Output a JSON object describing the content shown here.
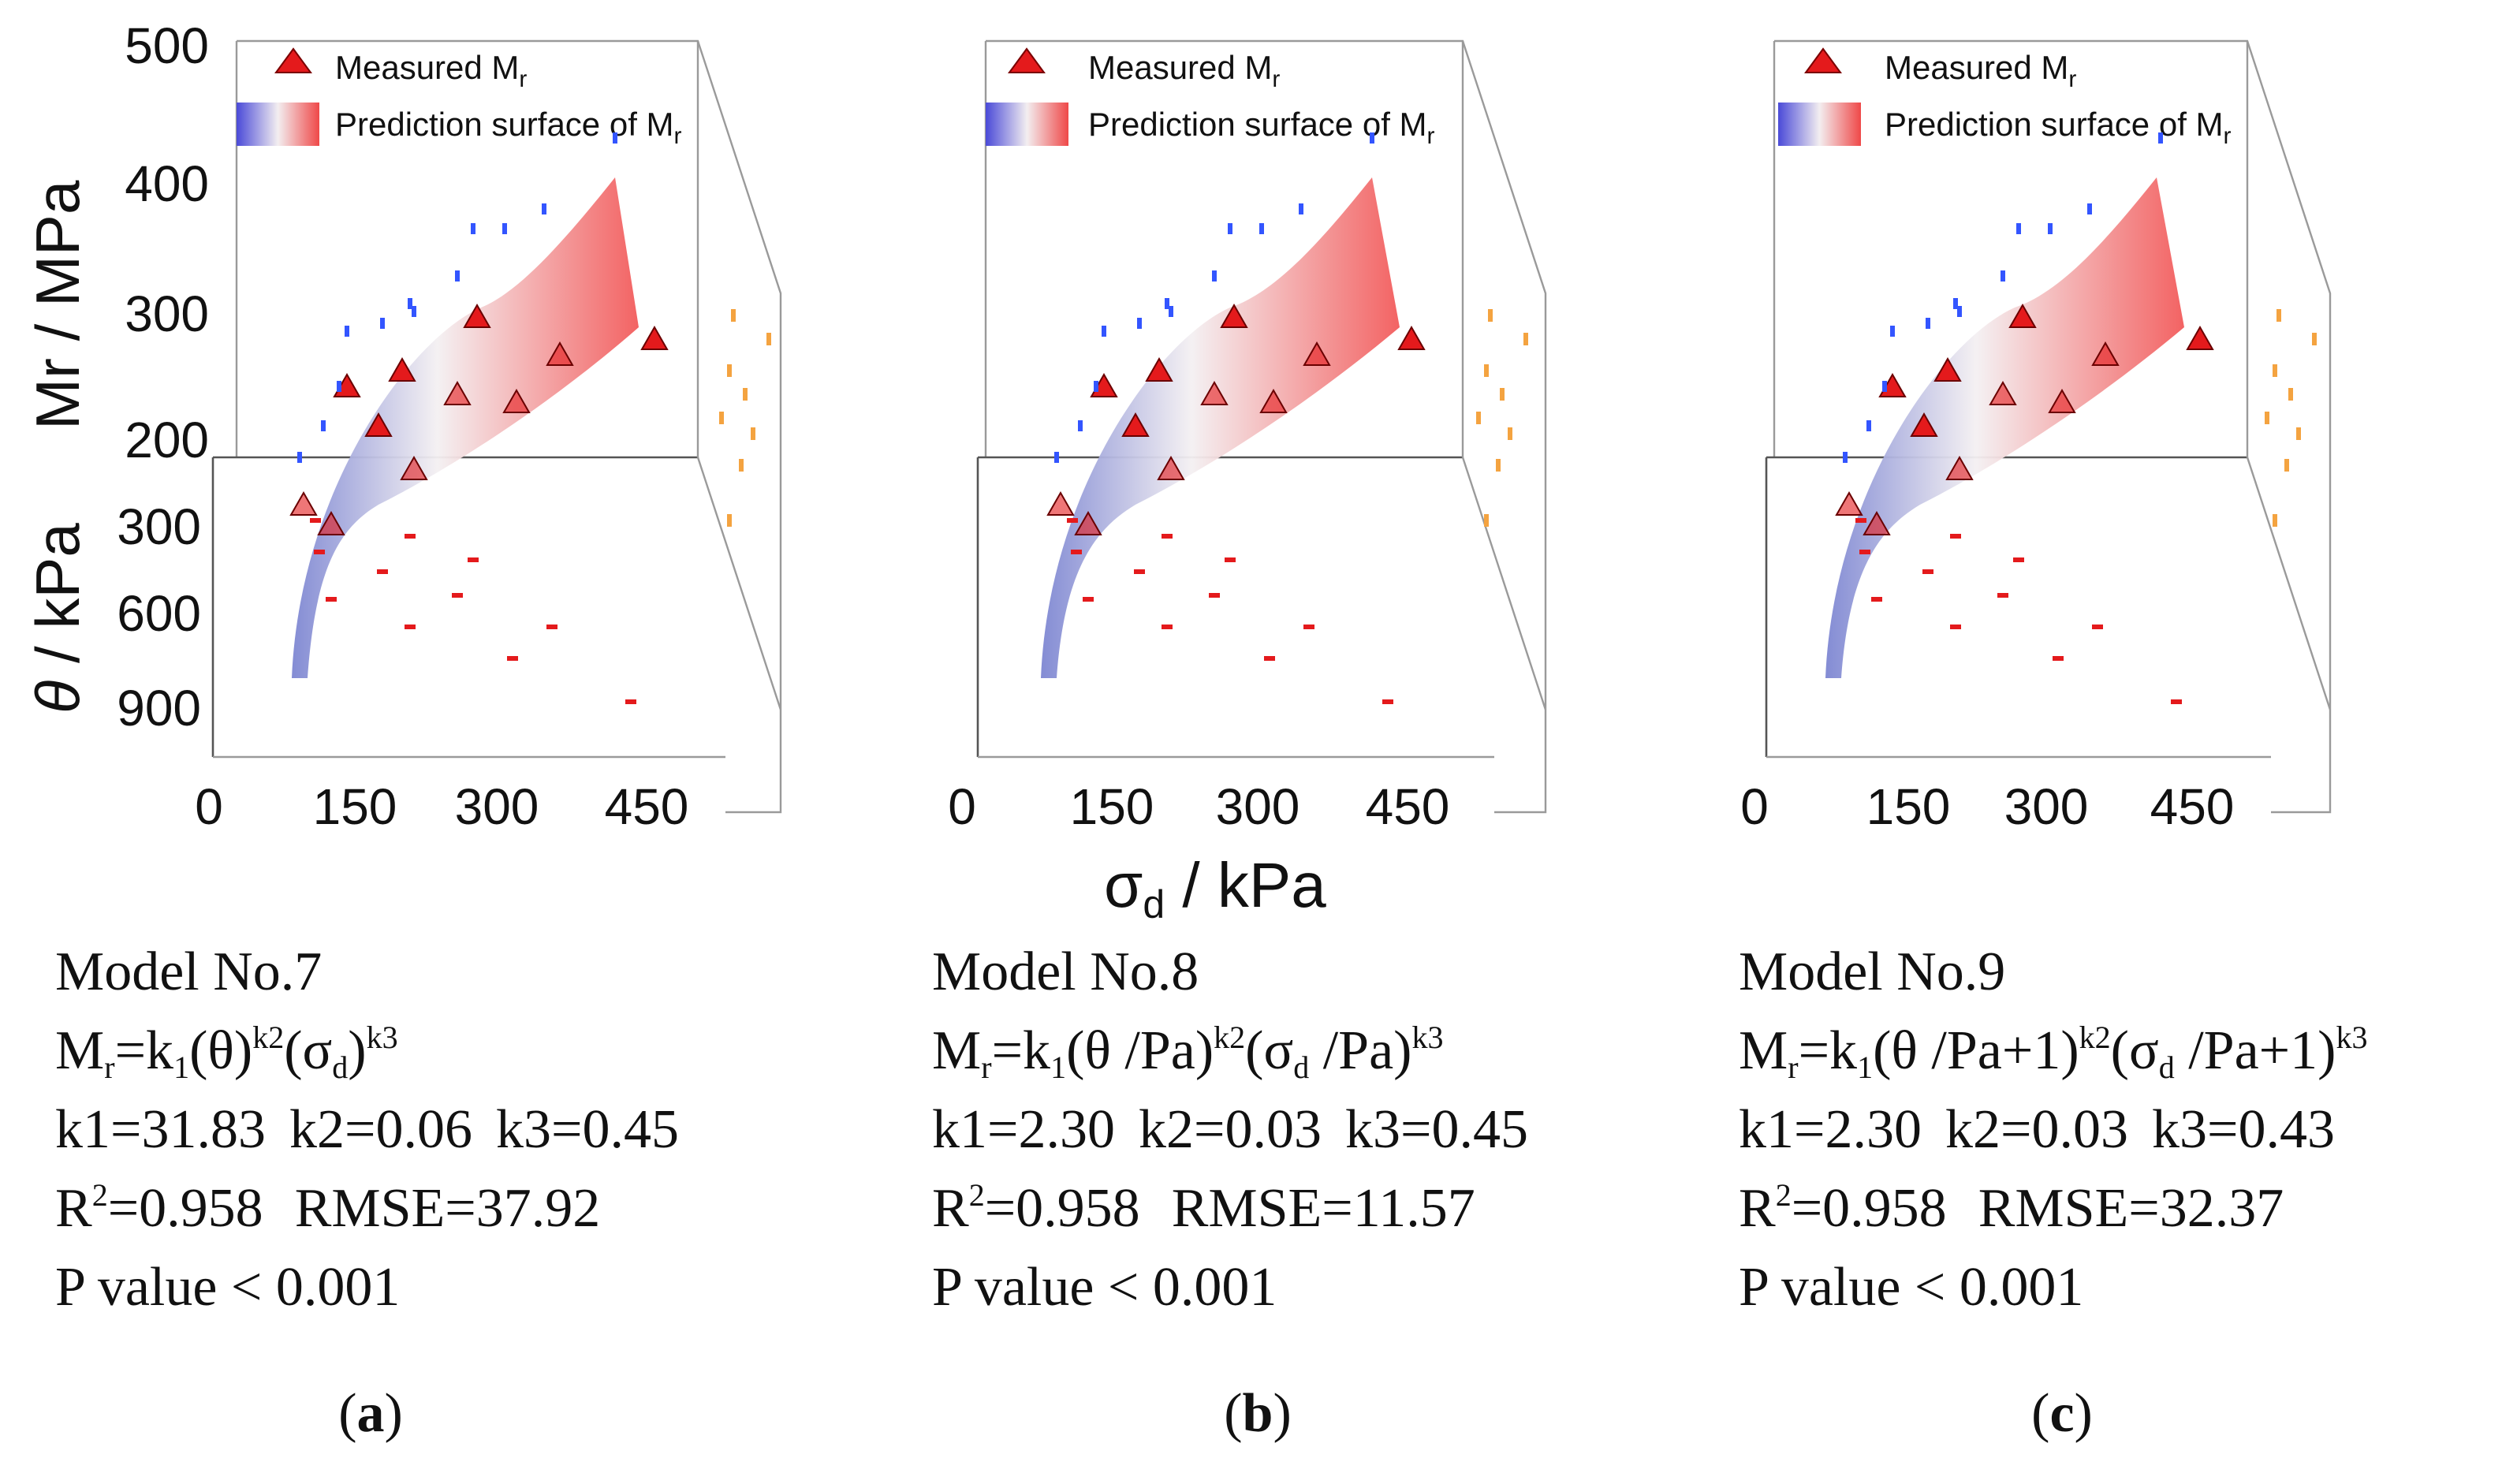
{
  "chart_data": [
    {
      "type": "scatter",
      "panel": "a",
      "legend": [
        "Measured M_r",
        "Prediction surface of M_r"
      ],
      "zlabel": "Mr / MPa",
      "ylabel": "θ / kPa",
      "xlabel": "σd / kPa",
      "zticks": [
        "500",
        "400",
        "300",
        "200"
      ],
      "yticks": [
        "300",
        "600",
        "900"
      ],
      "xticks": [
        "0",
        "150",
        "300",
        "450"
      ],
      "model": {
        "name": "Model No.7",
        "k1": "k1=31.83",
        "k2": "k2=0.06",
        "k3": "k3=0.45",
        "r2": "=0.958",
        "rmse": "RMSE=37.92",
        "p": "P value  < 0.001"
      },
      "caption": "a"
    },
    {
      "type": "scatter",
      "panel": "b",
      "legend": [
        "Measured M_r",
        "Prediction surface of M_r"
      ],
      "xlabel": "σd / kPa",
      "xticks": [
        "0",
        "150",
        "300",
        "450"
      ],
      "model": {
        "name": "Model No.8",
        "k1": "k1=2.30",
        "k2": "k2=0.03",
        "k3": "k3=0.45",
        "r2": "=0.958",
        "rmse": "RMSE=11.57",
        "p": "P value  < 0.001"
      },
      "caption": "b"
    },
    {
      "type": "scatter",
      "panel": "c",
      "legend": [
        "Measured M_r",
        "Prediction surface of M_r"
      ],
      "xticks": [
        "0",
        "150",
        "300",
        "450"
      ],
      "model": {
        "name": "Model No.9",
        "k1": "k1=2.30",
        "k2": "k2=0.03",
        "k3": "k3=0.43",
        "r2": "=0.958",
        "rmse": "RMSE=32.37",
        "p": "P value  < 0.001"
      },
      "caption": "c"
    }
  ],
  "labels": {
    "measured": "Measured M",
    "r_sub": "r",
    "surface": "Prediction surface of M",
    "z_axis": "Mr / MPa",
    "y_theta": "θ",
    "y_unit": " / kPa",
    "x_sigma": "σ",
    "x_d": "d",
    "x_unit": " / kPa"
  },
  "formulas": {
    "a": {
      "lhs": "M",
      "rs": "r",
      "mid": "=k",
      "one": "1",
      "a": "(θ)",
      "k2": "k2",
      "b": "(σ",
      "d": "d",
      "c": ")",
      "k3": "k3"
    },
    "b": {
      "lhs": "M",
      "rs": "r",
      "mid": "=k",
      "one": "1",
      "a": "(θ /Pa)",
      "k2": "k2",
      "b": "(σ",
      "d": "d",
      "c": " /Pa)",
      "k3": "k3"
    },
    "c": {
      "lhs": "M",
      "rs": "r",
      "mid": "=k",
      "one": "1",
      "a": "(θ /Pa+1)",
      "k2": "k2",
      "b": "(σ",
      "d": "d",
      "c": " /Pa+1)",
      "k3": "k3"
    }
  },
  "r_prefix": "R",
  "r_sup": "2",
  "colors": {
    "red": "#e41a1c",
    "blue": "#3355ff",
    "orange": "#f4a340",
    "surfaceLow": "#8e94d6",
    "surfaceHigh": "#f06a6a"
  }
}
